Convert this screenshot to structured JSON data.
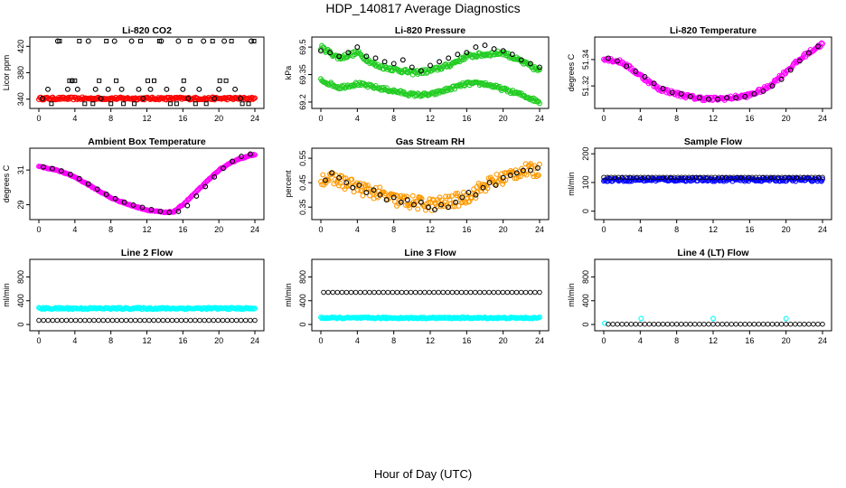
{
  "page": {
    "title": "HDP_140817  Average Diagnostics",
    "x_axis_label": "Hour of Day (UTC)"
  },
  "chart_data": [
    {
      "type": "scatter",
      "title": "Li-820 CO2",
      "ylabel": "Licor ppm",
      "xlim": [
        0,
        24
      ],
      "xticks": [
        0,
        4,
        8,
        12,
        16,
        20,
        24
      ],
      "ylim": [
        330,
        430
      ],
      "yticks": [
        340,
        380,
        420
      ],
      "series": [
        {
          "name": "red",
          "color": "#ff0000",
          "marker": "dot-band",
          "x": [
            0,
            24
          ],
          "values": [
            341,
            341
          ],
          "spread": 2
        },
        {
          "name": "squares",
          "color": "#000000",
          "marker": "square",
          "x": [
            1.4,
            2.3,
            3.4,
            4.0,
            4.5,
            5.1,
            6.0,
            6.7,
            7.5,
            8.0,
            8.6,
            9.4,
            10.6,
            11.3,
            12.1,
            12.8,
            13.4,
            14.6,
            15.3,
            16.1,
            16.8,
            17.4,
            18.6,
            19.3,
            20.1,
            20.8,
            21.4,
            22.6,
            23.3,
            23.9
          ],
          "values": [
            333,
            428,
            368,
            368,
            428,
            333,
            333,
            368,
            428,
            333,
            368,
            333,
            333,
            428,
            368,
            368,
            428,
            333,
            333,
            368,
            428,
            333,
            333,
            428,
            368,
            368,
            428,
            333,
            333,
            428
          ]
        },
        {
          "name": "circles",
          "color": "#000000",
          "marker": "circle",
          "x": [
            0.4,
            1.0,
            2.1,
            3.2,
            3.7,
            4.3,
            5.5,
            6.3,
            6.9,
            7.7,
            8.4,
            9.2,
            10.3,
            11.1,
            11.6,
            12.4,
            13.6,
            14.2,
            15.5,
            16.0,
            16.6,
            17.8,
            18.3,
            19.5,
            20.0,
            20.6,
            21.8,
            22.4,
            23.6
          ],
          "values": [
            341,
            355,
            428,
            355,
            368,
            355,
            428,
            355,
            341,
            355,
            428,
            355,
            428,
            355,
            341,
            355,
            428,
            355,
            428,
            355,
            341,
            355,
            428,
            341,
            355,
            428,
            355,
            341,
            428
          ]
        }
      ]
    },
    {
      "type": "scatter",
      "title": "Li-820 Pressure",
      "ylabel": "kPa",
      "xlim": [
        0,
        24
      ],
      "xticks": [
        0,
        4,
        8,
        12,
        16,
        20,
        24
      ],
      "ylim": [
        69.18,
        69.54
      ],
      "yticks": [
        69.2,
        69.35,
        69.5
      ],
      "series": [
        {
          "name": "green-top",
          "color": "#22cc22",
          "marker": "dot-band",
          "x": [
            0,
            2,
            4,
            6,
            8,
            10,
            12,
            14,
            16,
            18,
            20,
            22,
            24
          ],
          "values": [
            69.5,
            69.44,
            69.47,
            69.4,
            69.38,
            69.36,
            69.37,
            69.4,
            69.45,
            69.46,
            69.47,
            69.42,
            69.37
          ],
          "spread": 0.012
        },
        {
          "name": "green-bottom",
          "color": "#22cc22",
          "marker": "dot-band",
          "x": [
            0,
            2,
            4,
            6,
            8,
            10,
            12,
            14,
            16,
            18,
            20,
            22,
            24
          ],
          "values": [
            69.32,
            69.28,
            69.3,
            69.28,
            69.26,
            69.24,
            69.24,
            69.27,
            69.3,
            69.3,
            69.27,
            69.24,
            69.2
          ],
          "spread": 0.01
        },
        {
          "name": "black",
          "color": "#000000",
          "marker": "circle",
          "x": [
            0,
            1,
            2,
            3,
            4,
            5,
            6,
            7,
            8,
            9,
            10,
            11,
            12,
            13,
            14,
            15,
            16,
            17,
            18,
            19,
            20,
            21,
            22,
            23,
            24
          ],
          "values": [
            69.48,
            69.47,
            69.45,
            69.47,
            69.5,
            69.45,
            69.44,
            69.42,
            69.41,
            69.43,
            69.39,
            69.37,
            69.4,
            69.42,
            69.44,
            69.46,
            69.47,
            69.5,
            69.51,
            69.49,
            69.48,
            69.46,
            69.43,
            69.41,
            69.39
          ]
        }
      ]
    },
    {
      "type": "scatter",
      "title": "Li-820 Temperature",
      "ylabel": "degrees C",
      "xlim": [
        0,
        24
      ],
      "xticks": [
        0,
        4,
        8,
        12,
        16,
        20,
        24
      ],
      "ylim": [
        51.305,
        51.355
      ],
      "yticks": [
        51.32,
        51.34
      ],
      "ytick_labels": [
        "51.32",
        "51.34"
      ],
      "series": [
        {
          "name": "magenta",
          "color": "#ff00ff",
          "marker": "dot-band",
          "x": [
            0,
            2,
            4,
            6,
            8,
            10,
            12,
            14,
            16,
            18,
            20,
            22,
            24
          ],
          "values": [
            51.341,
            51.338,
            51.328,
            51.318,
            51.314,
            51.311,
            51.31,
            51.311,
            51.313,
            51.319,
            51.331,
            51.343,
            51.352
          ],
          "spread": 0.0015
        },
        {
          "name": "black",
          "color": "#000000",
          "marker": "circle",
          "x": [
            0.5,
            1.5,
            2.5,
            3.5,
            4.5,
            5.5,
            6.5,
            7.5,
            8.5,
            9.5,
            10.5,
            11.5,
            12.5,
            13.5,
            14.5,
            15.5,
            16.5,
            17.5,
            18.5,
            19.5,
            20.5,
            21.5,
            22.5,
            23.5
          ],
          "values": [
            51.341,
            51.339,
            51.335,
            51.331,
            51.327,
            51.322,
            51.318,
            51.315,
            51.314,
            51.312,
            51.311,
            51.31,
            51.31,
            51.311,
            51.311,
            51.312,
            51.314,
            51.316,
            51.32,
            51.325,
            51.332,
            51.339,
            51.345,
            51.35
          ]
        }
      ]
    },
    {
      "type": "scatter",
      "title": "Ambient Box Temperature",
      "ylabel": "degrees C",
      "xlim": [
        0,
        24
      ],
      "xticks": [
        0,
        4,
        8,
        12,
        16,
        20,
        24
      ],
      "ylim": [
        28.3,
        32.1
      ],
      "yticks": [
        29,
        31
      ],
      "series": [
        {
          "name": "magenta",
          "color": "#ff00ff",
          "marker": "dot-band",
          "x": [
            0,
            2,
            4,
            6,
            8,
            10,
            12,
            14,
            15,
            16,
            18,
            20,
            22,
            24
          ],
          "values": [
            31.2,
            31.0,
            30.6,
            30.0,
            29.4,
            29.0,
            28.7,
            28.55,
            28.6,
            29.0,
            30.0,
            31.0,
            31.6,
            31.9
          ],
          "spread": 0.03
        },
        {
          "name": "black",
          "color": "#000000",
          "marker": "circle",
          "x": [
            0.5,
            1.5,
            2.5,
            3.5,
            4.5,
            5.5,
            6.5,
            7.5,
            8.5,
            9.5,
            10.5,
            11.5,
            12.5,
            13.5,
            14.5,
            15.5,
            16.5,
            17.5,
            18.5,
            19.5,
            20.5,
            21.5,
            22.5,
            23.5
          ],
          "values": [
            31.18,
            31.08,
            30.95,
            30.75,
            30.5,
            30.2,
            29.9,
            29.6,
            29.35,
            29.15,
            28.98,
            28.85,
            28.72,
            28.62,
            28.56,
            28.62,
            28.95,
            29.5,
            30.05,
            30.6,
            31.1,
            31.5,
            31.78,
            31.92
          ]
        }
      ]
    },
    {
      "type": "scatter",
      "title": "Gas Stream RH",
      "ylabel": "percent",
      "xlim": [
        0,
        24
      ],
      "xticks": [
        0,
        4,
        8,
        12,
        16,
        20,
        24
      ],
      "ylim": [
        0.31,
        0.58
      ],
      "yticks": [
        0.35,
        0.45,
        0.55
      ],
      "series": [
        {
          "name": "orange",
          "color": "#ff9900",
          "marker": "dot-band",
          "x": [
            0,
            2,
            4,
            6,
            8,
            10,
            12,
            14,
            16,
            18,
            20,
            22,
            24
          ],
          "values": [
            0.47,
            0.46,
            0.43,
            0.41,
            0.38,
            0.37,
            0.36,
            0.37,
            0.39,
            0.44,
            0.47,
            0.5,
            0.5
          ],
          "spread": 0.028
        },
        {
          "name": "black",
          "color": "#000000",
          "marker": "circle",
          "x": [
            0.5,
            1.2,
            2.0,
            2.8,
            3.5,
            4.2,
            5.0,
            5.8,
            6.5,
            7.2,
            8.0,
            8.8,
            9.5,
            10.2,
            11.0,
            11.8,
            12.5,
            13.2,
            14.0,
            14.8,
            15.5,
            16.2,
            17.0,
            17.8,
            18.5,
            19.2,
            20.0,
            20.8,
            21.5,
            22.2,
            23.0,
            23.8
          ],
          "values": [
            0.46,
            0.49,
            0.47,
            0.45,
            0.43,
            0.44,
            0.41,
            0.42,
            0.4,
            0.38,
            0.39,
            0.37,
            0.38,
            0.36,
            0.37,
            0.35,
            0.34,
            0.36,
            0.35,
            0.37,
            0.39,
            0.41,
            0.4,
            0.43,
            0.45,
            0.44,
            0.47,
            0.48,
            0.49,
            0.5,
            0.5,
            0.51
          ]
        }
      ]
    },
    {
      "type": "scatter",
      "title": "Sample Flow",
      "ylabel": "ml/min",
      "xlim": [
        0,
        24
      ],
      "xticks": [
        0,
        4,
        8,
        12,
        16,
        20,
        24
      ],
      "ylim": [
        -20,
        210
      ],
      "yticks": [
        0,
        100,
        200
      ],
      "series": [
        {
          "name": "blue",
          "color": "#0000ff",
          "marker": "dot-band",
          "x": [
            0,
            24
          ],
          "values": [
            110,
            110
          ],
          "spread": 6
        },
        {
          "name": "black",
          "color": "#000000",
          "marker": "circle-dense",
          "x": [
            0,
            24
          ],
          "values": [
            118,
            118
          ],
          "count": 60
        }
      ]
    },
    {
      "type": "scatter",
      "title": "Line 2 Flow",
      "ylabel": "ml/min",
      "xlim": [
        0,
        24
      ],
      "xticks": [
        0,
        4,
        8,
        12,
        16,
        20,
        24
      ],
      "ylim": [
        -60,
        1050
      ],
      "yticks": [
        0,
        400,
        800
      ],
      "series": [
        {
          "name": "cyan",
          "color": "#00ffff",
          "marker": "dot-band",
          "x": [
            0,
            24
          ],
          "values": [
            270,
            270
          ],
          "spread": 15
        },
        {
          "name": "black",
          "color": "#000000",
          "marker": "circle-dense",
          "x": [
            0,
            24
          ],
          "values": [
            70,
            70
          ],
          "count": 48
        }
      ]
    },
    {
      "type": "scatter",
      "title": "Line 3 Flow",
      "ylabel": "ml/min",
      "xlim": [
        0,
        24
      ],
      "xticks": [
        0,
        4,
        8,
        12,
        16,
        20,
        24
      ],
      "ylim": [
        -60,
        1050
      ],
      "yticks": [
        0,
        400,
        800
      ],
      "series": [
        {
          "name": "cyan",
          "color": "#00ffff",
          "marker": "dot-band",
          "x": [
            0,
            24
          ],
          "values": [
            110,
            110
          ],
          "spread": 12
        },
        {
          "name": "black",
          "color": "#000000",
          "marker": "circle-dense",
          "x": [
            0.3,
            24
          ],
          "values": [
            540,
            540
          ],
          "count": 48
        }
      ]
    },
    {
      "type": "scatter",
      "title": "Line 4 (LT) Flow",
      "ylabel": "ml/min",
      "xlim": [
        0,
        24
      ],
      "xticks": [
        0,
        4,
        8,
        12,
        16,
        20,
        24
      ],
      "ylim": [
        -60,
        1050
      ],
      "yticks": [
        0,
        400,
        800
      ],
      "series": [
        {
          "name": "cyan",
          "color": "#00ffff",
          "marker": "circle",
          "x": [
            0.1,
            4.1,
            12.0,
            20.0
          ],
          "values": [
            20,
            100,
            100,
            100
          ]
        },
        {
          "name": "black",
          "color": "#000000",
          "marker": "circle-dense",
          "x": [
            0.5,
            24
          ],
          "values": [
            5,
            5
          ],
          "count": 48
        }
      ]
    }
  ]
}
